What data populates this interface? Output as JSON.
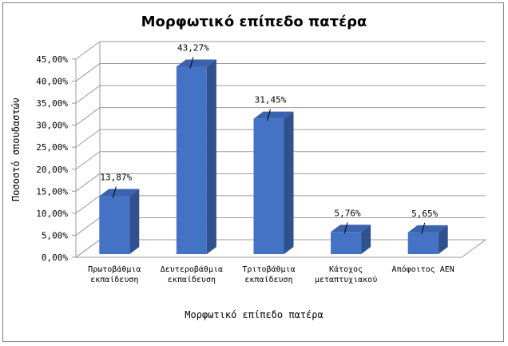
{
  "chart_data": {
    "type": "bar",
    "title": "Μορφωτικό επίπεδο πατέρα",
    "xlabel": "Μορφωτικό επίπεδο πατέρα",
    "ylabel": "Ποσοστό σπουδαστών",
    "categories": [
      [
        "Πρωτοβάθμια",
        "εκπαίδευση"
      ],
      [
        "Δευτεροβάθμια",
        "εκπαίδευση"
      ],
      [
        "Τριτοβάθμια",
        "εκπαίδευση"
      ],
      [
        "Κάτοχος",
        "μεταπτυχιακού"
      ],
      [
        "Απόφοιτος ΑΕΝ"
      ]
    ],
    "values": [
      13.87,
      43.27,
      31.45,
      5.76,
      5.65
    ],
    "data_labels": [
      "13,87%",
      "43,27%",
      "31,45%",
      "5,76%",
      "5,65%"
    ],
    "ylim": [
      0,
      45
    ],
    "yticks": [
      "0,00%",
      "5,00%",
      "10,00%",
      "15,00%",
      "20,00%",
      "25,00%",
      "30,00%",
      "35,00%",
      "40,00%",
      "45,00%"
    ],
    "grid": true,
    "legend": "none",
    "style": "3d-column",
    "colors": {
      "bar_front": "#4472c4",
      "bar_side": "#2f528f",
      "bar_top": "#3a62ad",
      "grid": "#9a9a9a"
    }
  }
}
